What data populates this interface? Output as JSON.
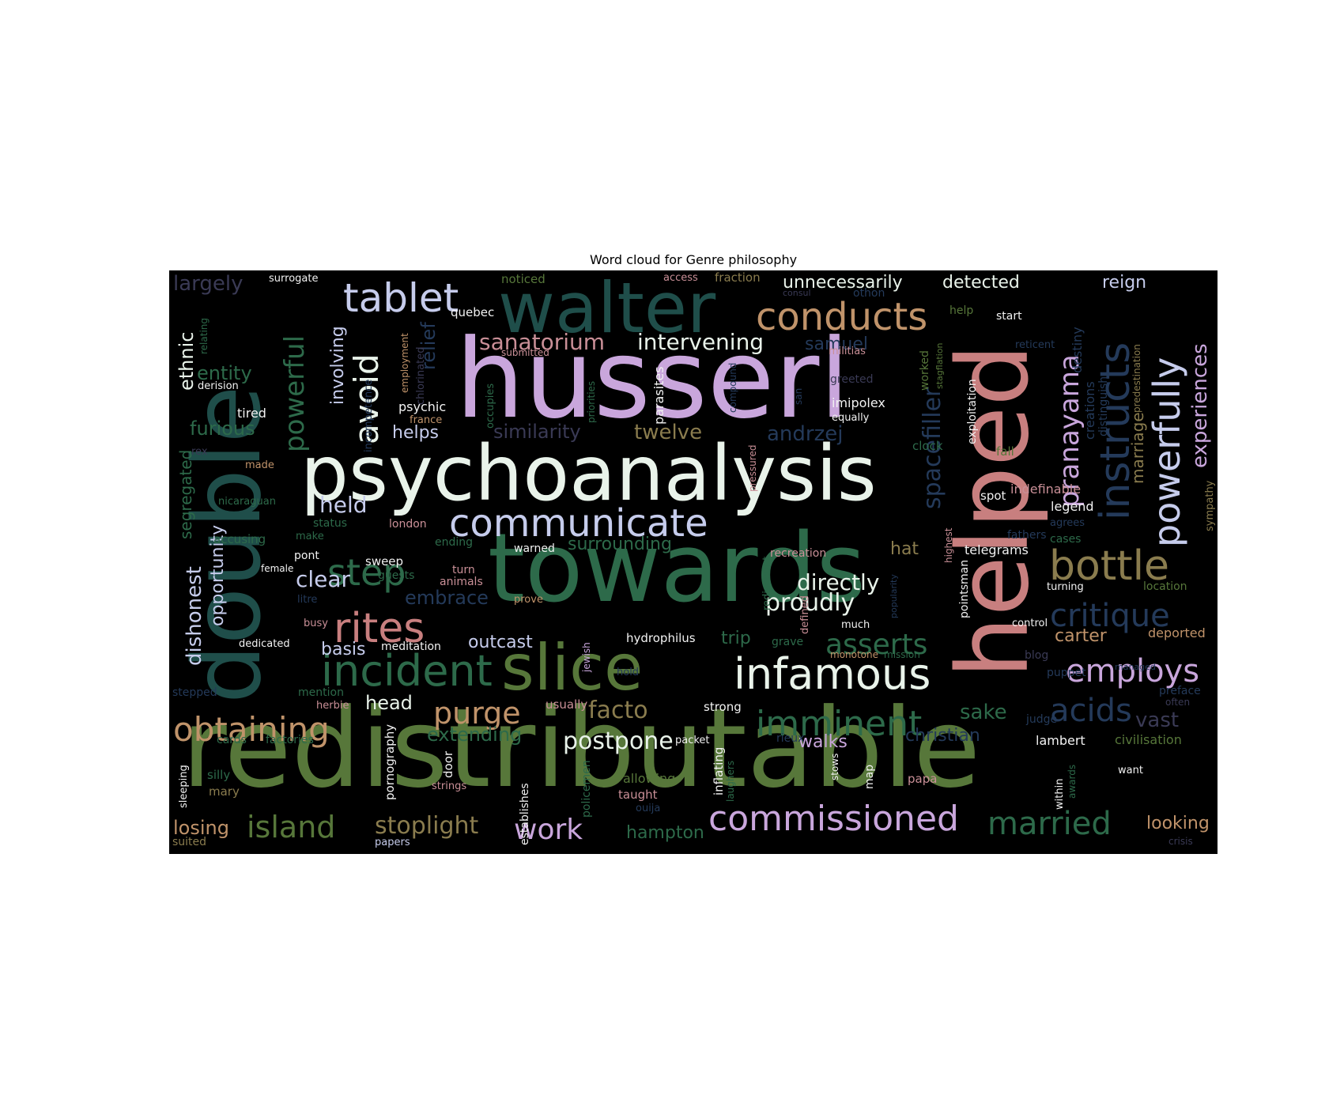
{
  "chart_data": {
    "type": "wordcloud",
    "title": "Word cloud for Genre philosophy",
    "background": "#000000",
    "palette": {
      "green": "#57773a",
      "teal": "#1f4e4a",
      "seagreen": "#2d6a4a",
      "pink": "#c98f97",
      "salmon": "#c87f7f",
      "lavender": "#c9a6dc",
      "lightblue": "#c6ccec",
      "offwhite": "#e9f3ea",
      "tan": "#c0936a",
      "olive": "#8a7c4e",
      "navy": "#243a5a",
      "dim": "#3a3a55",
      "leaf": "#4f8a3f",
      "white": "#f2f2f2"
    },
    "words": [
      {
        "text": "redistributable",
        "color": "green"
      },
      {
        "text": "towards",
        "color": "seagreen"
      },
      {
        "text": "husserl",
        "color": "lavender"
      },
      {
        "text": "helped",
        "color": "salmon"
      },
      {
        "text": "double",
        "color": "teal"
      },
      {
        "text": "psychoanalysis",
        "color": "offwhite"
      },
      {
        "text": "slice",
        "color": "green"
      },
      {
        "text": "walter",
        "color": "teal"
      },
      {
        "text": "communicate",
        "color": "lightblue"
      },
      {
        "text": "infamous",
        "color": "offwhite"
      },
      {
        "text": "incident",
        "color": "seagreen"
      },
      {
        "text": "rites",
        "color": "salmon"
      },
      {
        "text": "tablet",
        "color": "lightblue"
      },
      {
        "text": "conducts",
        "color": "tan"
      },
      {
        "text": "bottle",
        "color": "olive"
      },
      {
        "text": "powerfully",
        "color": "lightblue"
      },
      {
        "text": "instructs",
        "color": "navy"
      },
      {
        "text": "commissioned",
        "color": "lavender"
      },
      {
        "text": "married",
        "color": "seagreen"
      },
      {
        "text": "island",
        "color": "green"
      },
      {
        "text": "imminent",
        "color": "seagreen"
      },
      {
        "text": "obtaining",
        "color": "tan"
      },
      {
        "text": "step",
        "color": "seagreen"
      },
      {
        "text": "critique",
        "color": "navy"
      },
      {
        "text": "acids",
        "color": "navy"
      },
      {
        "text": "employs",
        "color": "lavender"
      },
      {
        "text": "asserts",
        "color": "seagreen"
      },
      {
        "text": "purge",
        "color": "tan"
      },
      {
        "text": "avoid",
        "color": "offwhite"
      },
      {
        "text": "powerful",
        "color": "seagreen"
      },
      {
        "text": "pranayama",
        "color": "lavender"
      },
      {
        "text": "work",
        "color": "lavender"
      },
      {
        "text": "stoplight",
        "color": "olive"
      },
      {
        "text": "facto",
        "color": "olive"
      },
      {
        "text": "postpone",
        "color": "offwhite"
      },
      {
        "text": "proudly",
        "color": "offwhite"
      },
      {
        "text": "directly",
        "color": "offwhite"
      },
      {
        "text": "spacefiller",
        "color": "navy"
      },
      {
        "text": "experiences",
        "color": "lavender"
      },
      {
        "text": "sanatorium",
        "color": "pink"
      },
      {
        "text": "intervening",
        "color": "offwhite"
      },
      {
        "text": "unnecessarily",
        "color": "offwhite"
      },
      {
        "text": "detected",
        "color": "offwhite"
      },
      {
        "text": "reign",
        "color": "lightblue"
      },
      {
        "text": "largely",
        "color": "dim"
      },
      {
        "text": "ethnic",
        "color": "offwhite"
      },
      {
        "text": "entity",
        "color": "seagreen"
      },
      {
        "text": "furious",
        "color": "seagreen"
      },
      {
        "text": "relief",
        "color": "navy"
      },
      {
        "text": "involving",
        "color": "lightblue"
      },
      {
        "text": "helps",
        "color": "lightblue"
      },
      {
        "text": "twelve",
        "color": "olive"
      },
      {
        "text": "andrzej",
        "color": "navy"
      },
      {
        "text": "similarity",
        "color": "dim"
      },
      {
        "text": "held",
        "color": "lightblue"
      },
      {
        "text": "clear",
        "color": "lightblue"
      },
      {
        "text": "embrace",
        "color": "navy"
      },
      {
        "text": "dishonest",
        "color": "lightblue"
      },
      {
        "text": "opportunity",
        "color": "lightblue"
      },
      {
        "text": "segregated",
        "color": "seagreen"
      },
      {
        "text": "surrounding",
        "color": "seagreen"
      },
      {
        "text": "extending",
        "color": "seagreen"
      },
      {
        "text": "christian",
        "color": "navy"
      },
      {
        "text": "sake",
        "color": "seagreen"
      },
      {
        "text": "vast",
        "color": "dim"
      },
      {
        "text": "carter",
        "color": "tan"
      },
      {
        "text": "trip",
        "color": "seagreen"
      },
      {
        "text": "outcast",
        "color": "lightblue"
      },
      {
        "text": "basis",
        "color": "lightblue"
      },
      {
        "text": "head",
        "color": "offwhite"
      },
      {
        "text": "walks",
        "color": "lavender"
      },
      {
        "text": "hampton",
        "color": "seagreen"
      },
      {
        "text": "losing",
        "color": "tan"
      },
      {
        "text": "looking",
        "color": "tan"
      },
      {
        "text": "marriage",
        "color": "olive"
      },
      {
        "text": "samuel",
        "color": "navy"
      },
      {
        "text": "hat",
        "color": "olive"
      },
      {
        "text": "legend",
        "color": "white"
      },
      {
        "text": "indefinable",
        "color": "pink"
      },
      {
        "text": "telegrams",
        "color": "white"
      },
      {
        "text": "lambert",
        "color": "white"
      },
      {
        "text": "civilisation",
        "color": "green"
      },
      {
        "text": "deported",
        "color": "tan"
      },
      {
        "text": "surrogate",
        "color": "white"
      },
      {
        "text": "noticed",
        "color": "green"
      },
      {
        "text": "access",
        "color": "pink"
      },
      {
        "text": "fraction",
        "color": "olive"
      },
      {
        "text": "quebec",
        "color": "white"
      },
      {
        "text": "start",
        "color": "white"
      },
      {
        "text": "help",
        "color": "green"
      },
      {
        "text": "othon",
        "color": "navy"
      },
      {
        "text": "destiny",
        "color": "navy"
      },
      {
        "text": "reticent",
        "color": "navy"
      },
      {
        "text": "exploitation",
        "color": "white"
      },
      {
        "text": "predestination",
        "color": "olive"
      },
      {
        "text": "imipolex",
        "color": "white"
      },
      {
        "text": "equally",
        "color": "white"
      },
      {
        "text": "militias",
        "color": "pink"
      },
      {
        "text": "worked",
        "color": "green"
      },
      {
        "text": "stagflation",
        "color": "green"
      },
      {
        "text": "psychic",
        "color": "white"
      },
      {
        "text": "france",
        "color": "tan"
      },
      {
        "text": "parasites",
        "color": "white"
      },
      {
        "text": "tired",
        "color": "white"
      },
      {
        "text": "derision",
        "color": "white"
      },
      {
        "text": "relating",
        "color": "seagreen"
      },
      {
        "text": "submitted",
        "color": "pink"
      },
      {
        "text": "employment",
        "color": "tan"
      },
      {
        "text": "chlorinated",
        "color": "dim"
      },
      {
        "text": "priorities",
        "color": "seagreen"
      },
      {
        "text": "occupies",
        "color": "seagreen"
      },
      {
        "text": "compound",
        "color": "navy"
      },
      {
        "text": "greeted",
        "color": "dim"
      },
      {
        "text": "clock",
        "color": "seagreen"
      },
      {
        "text": "fall",
        "color": "green"
      },
      {
        "text": "distinguish",
        "color": "navy"
      },
      {
        "text": "creations",
        "color": "navy"
      },
      {
        "text": "sympathy",
        "color": "olive"
      },
      {
        "text": "made",
        "color": "tan"
      },
      {
        "text": "rex",
        "color": "dim"
      },
      {
        "text": "pressured",
        "color": "pink"
      },
      {
        "text": "incompetence",
        "color": "navy"
      },
      {
        "text": "nicaraguan",
        "color": "seagreen"
      },
      {
        "text": "status",
        "color": "seagreen"
      },
      {
        "text": "london",
        "color": "pink"
      },
      {
        "text": "accusing",
        "color": "seagreen"
      },
      {
        "text": "make",
        "color": "seagreen"
      },
      {
        "text": "ending",
        "color": "seagreen"
      },
      {
        "text": "warned",
        "color": "white"
      },
      {
        "text": "pont",
        "color": "white"
      },
      {
        "text": "sweep",
        "color": "white"
      },
      {
        "text": "female",
        "color": "white"
      },
      {
        "text": "guests",
        "color": "seagreen"
      },
      {
        "text": "turn",
        "color": "pink"
      },
      {
        "text": "animals",
        "color": "pink"
      },
      {
        "text": "litre",
        "color": "navy"
      },
      {
        "text": "busy",
        "color": "pink"
      },
      {
        "text": "prove",
        "color": "tan"
      },
      {
        "text": "dedicated",
        "color": "white"
      },
      {
        "text": "meditation",
        "color": "white"
      },
      {
        "text": "hydrophilus",
        "color": "white"
      },
      {
        "text": "grave",
        "color": "seagreen"
      },
      {
        "text": "much",
        "color": "white"
      },
      {
        "text": "defined",
        "color": "pink"
      },
      {
        "text": "rediscount",
        "color": "seagreen"
      },
      {
        "text": "recreation",
        "color": "pink"
      },
      {
        "text": "popularity",
        "color": "navy"
      },
      {
        "text": "highest",
        "color": "pink"
      },
      {
        "text": "pointsman",
        "color": "white"
      },
      {
        "text": "spot",
        "color": "white"
      },
      {
        "text": "fathers",
        "color": "navy"
      },
      {
        "text": "agrees",
        "color": "navy"
      },
      {
        "text": "cases",
        "color": "seagreen"
      },
      {
        "text": "turning",
        "color": "white"
      },
      {
        "text": "location",
        "color": "green"
      },
      {
        "text": "control",
        "color": "white"
      },
      {
        "text": "monotone",
        "color": "tan"
      },
      {
        "text": "mission",
        "color": "seagreen"
      },
      {
        "text": "blog",
        "color": "dim"
      },
      {
        "text": "puppet",
        "color": "navy"
      },
      {
        "text": "managed",
        "color": "navy"
      },
      {
        "text": "preface",
        "color": "navy"
      },
      {
        "text": "often",
        "color": "dim"
      },
      {
        "text": "jewish",
        "color": "lavender"
      },
      {
        "text": "hold",
        "color": "navy"
      },
      {
        "text": "stepped",
        "color": "navy"
      },
      {
        "text": "mention",
        "color": "seagreen"
      },
      {
        "text": "herbie",
        "color": "pink"
      },
      {
        "text": "usually",
        "color": "pink"
      },
      {
        "text": "strong",
        "color": "white"
      },
      {
        "text": "packet",
        "color": "white"
      },
      {
        "text": "rieux",
        "color": "navy"
      },
      {
        "text": "judge",
        "color": "navy"
      },
      {
        "text": "cards",
        "color": "seagreen"
      },
      {
        "text": "factories",
        "color": "seagreen"
      },
      {
        "text": "sleeping",
        "color": "white"
      },
      {
        "text": "silly",
        "color": "seagreen"
      },
      {
        "text": "mary",
        "color": "olive"
      },
      {
        "text": "pornography",
        "color": "white"
      },
      {
        "text": "door",
        "color": "white"
      },
      {
        "text": "strings",
        "color": "pink"
      },
      {
        "text": "establishes",
        "color": "white"
      },
      {
        "text": "policemen",
        "color": "seagreen"
      },
      {
        "text": "allowing",
        "color": "green"
      },
      {
        "text": "taught",
        "color": "pink"
      },
      {
        "text": "ouija",
        "color": "navy"
      },
      {
        "text": "inflating",
        "color": "white"
      },
      {
        "text": "laughers",
        "color": "seagreen"
      },
      {
        "text": "stows",
        "color": "white"
      },
      {
        "text": "map",
        "color": "white"
      },
      {
        "text": "papa",
        "color": "pink"
      },
      {
        "text": "awards",
        "color": "seagreen"
      },
      {
        "text": "within",
        "color": "white"
      },
      {
        "text": "want",
        "color": "white"
      },
      {
        "text": "crisis",
        "color": "dim"
      },
      {
        "text": "suited",
        "color": "olive"
      },
      {
        "text": "papers",
        "color": "lightblue"
      },
      {
        "text": "san",
        "color": "navy"
      },
      {
        "text": "consul",
        "color": "dim"
      }
    ]
  }
}
